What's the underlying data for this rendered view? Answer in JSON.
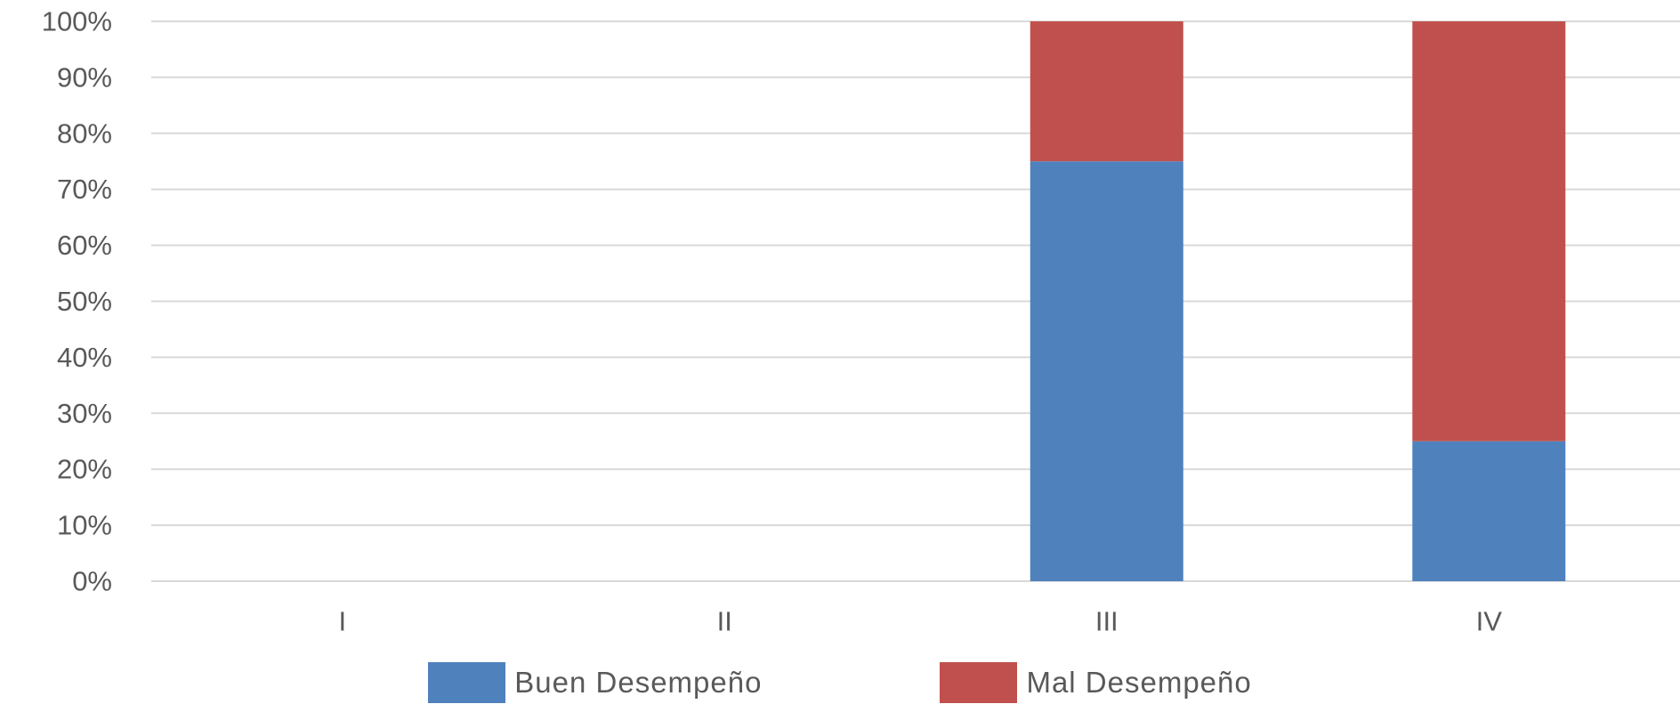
{
  "chart_data": {
    "type": "bar",
    "stacked": true,
    "categories": [
      "I",
      "II",
      "III",
      "IV"
    ],
    "series": [
      {
        "name": "Buen Desempeño",
        "values": [
          0,
          0,
          75,
          25
        ],
        "color": "#4F81BD"
      },
      {
        "name": "Mal Desempeño",
        "values": [
          0,
          0,
          25,
          75
        ],
        "color": "#C0504D"
      }
    ],
    "y_ticks": [
      "0%",
      "10%",
      "20%",
      "30%",
      "40%",
      "50%",
      "60%",
      "70%",
      "80%",
      "90%",
      "100%"
    ],
    "ylim": [
      0,
      100
    ],
    "y_unit": "%",
    "grid": true,
    "grid_color": "#D9D9D9",
    "legend": {
      "position": "bottom"
    },
    "title": "",
    "xlabel": "",
    "ylabel": ""
  }
}
